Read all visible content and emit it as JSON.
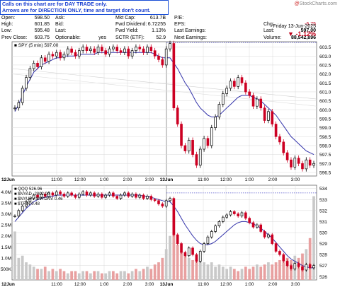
{
  "banner": {
    "line1": "Calls on this chart are for DAY TRADE only.",
    "line2": "Arrows are for DIRECTION ONLY, time and target don't count."
  },
  "credit": {
    "prefix": "@",
    "brand": "StockCharts.com"
  },
  "header": {
    "date": "Friday  13-Jun-2025",
    "change_pct": "-1.12%",
    "col1": [
      {
        "label": "Open:",
        "value": "598.50"
      },
      {
        "label": "High:",
        "value": "601.85"
      },
      {
        "label": "Low:",
        "value": "595.48"
      },
      {
        "label": "Prev Close:",
        "value": "603.75"
      }
    ],
    "col2": [
      {
        "label": "Ask:",
        "value": ""
      },
      {
        "label": "Bid:",
        "value": ""
      },
      {
        "label": "Last:",
        "value": ""
      },
      {
        "label": "Optionable:",
        "value": "yes"
      }
    ],
    "col3": [
      {
        "label": "Mkt Cap:",
        "value": "613.7B"
      },
      {
        "label": "Fwd Dividend:",
        "value": "6.72255"
      },
      {
        "label": "Fwd Yield:",
        "value": "1.13%"
      },
      {
        "label": "SCTR (ETF):",
        "value": "52.9"
      }
    ],
    "col4": [
      {
        "label": "P/E:",
        "value": ""
      },
      {
        "label": "EPS:",
        "value": ""
      },
      {
        "label": "Last Earnings:",
        "value": ""
      },
      {
        "label": "Next Earnings:",
        "value": ""
      }
    ],
    "col5": [
      {
        "label": "Chg:",
        "value": "-6.75"
      },
      {
        "label": "Last:",
        "value": "597.00"
      },
      {
        "label": "Volume:",
        "value": "88,542,896"
      }
    ]
  },
  "chart_data": [
    {
      "type": "line",
      "legend": "SPY (5 min) 597.00",
      "title": "",
      "x_labels": [
        "12Jun",
        "11:00",
        "12:00",
        "1:00",
        "2:00",
        "3:00",
        "13Jun",
        "11:00",
        "12:00",
        "1:00",
        "2:00",
        "3:00"
      ],
      "y_ticks": [
        596.5,
        597.0,
        597.5,
        598.0,
        598.5,
        599.0,
        599.5,
        600.0,
        600.5,
        601.0,
        601.5,
        602.0,
        602.5,
        603.0,
        603.5
      ],
      "ylim": [
        596.3,
        603.8
      ],
      "prev_close": 603.75,
      "price_series": [
        600.1,
        600.4,
        601.2,
        601.8,
        602.3,
        602.6,
        602.4,
        602.9,
        602.7,
        603.1,
        603.0,
        603.2,
        602.9,
        603.1,
        603.4,
        603.2,
        603.0,
        603.3,
        603.5,
        603.3,
        603.4,
        603.2,
        603.5,
        603.3,
        603.1,
        603.4,
        603.5,
        603.3,
        603.2,
        603.4,
        603.0,
        603.3,
        603.5,
        603.4,
        603.2,
        603.5,
        603.3,
        603.0,
        602.8,
        602.5,
        603.4,
        603.7,
        600.1,
        599.2,
        598.0,
        597.7,
        598.3,
        597.5,
        596.9,
        597.8,
        598.4,
        598.0,
        599.0,
        599.6,
        600.3,
        600.9,
        601.2,
        601.6,
        601.3,
        601.8,
        601.5,
        601.0,
        600.8,
        600.2,
        600.6,
        600.1,
        599.4,
        599.9,
        599.2,
        598.5,
        598.2,
        597.6,
        597.2,
        596.8,
        597.3,
        597.0,
        596.7,
        597.2,
        596.9,
        597.0
      ],
      "ma_series": [
        599.9,
        600.3,
        600.8,
        601.3,
        601.7,
        602.1,
        602.3,
        602.5,
        602.6,
        602.7,
        602.8,
        602.9,
        602.9,
        603.0,
        603.0,
        603.0,
        603.0,
        603.1,
        603.1,
        603.1,
        603.1,
        603.1,
        603.2,
        603.2,
        603.2,
        603.2,
        603.2,
        603.2,
        603.2,
        603.2,
        603.2,
        603.2,
        603.2,
        603.2,
        603.2,
        603.2,
        603.2,
        603.1,
        603.0,
        602.9,
        602.9,
        602.9,
        602.6,
        602.3,
        601.9,
        601.5,
        601.2,
        600.8,
        600.4,
        600.1,
        599.9,
        599.7,
        599.6,
        599.6,
        599.7,
        599.9,
        600.1,
        600.3,
        600.5,
        600.7,
        600.8,
        600.8,
        600.8,
        600.7,
        600.6,
        600.5,
        600.3,
        600.1,
        599.9,
        599.7,
        599.4,
        599.1,
        598.8,
        598.5,
        598.3,
        598.1,
        597.9,
        597.7,
        597.6,
        597.5
      ]
    },
    {
      "type": "line",
      "legend": [
        "QQQ 526.96",
        "$NYAD -2002.00",
        "$NYUPV:$NYDNV 0.46",
        "$TRIN 0.48"
      ],
      "title": "",
      "right_ticks": [
        526,
        527,
        528,
        529,
        530,
        531,
        532,
        533,
        534
      ],
      "left_ticks": [
        "500K",
        "1.0M",
        "1.5M",
        "2.0M",
        "2.5M",
        "3.0M",
        "3.5M",
        "4.0M"
      ],
      "ylim": [
        525.7,
        534.3
      ],
      "prev_close": 533.6,
      "price_series": [
        531.5,
        532.0,
        532.4,
        532.8,
        533.1,
        533.4,
        533.2,
        533.5,
        533.3,
        533.6,
        533.4,
        533.7,
        533.5,
        533.3,
        533.6,
        533.4,
        533.2,
        533.5,
        533.7,
        533.4,
        533.6,
        533.3,
        533.5,
        533.2,
        533.4,
        533.6,
        533.3,
        533.1,
        533.4,
        533.6,
        533.3,
        533.5,
        533.2,
        533.4,
        533.1,
        533.3,
        533.0,
        532.9,
        532.6,
        532.4,
        532.9,
        533.1,
        529.8,
        529.0,
        528.2,
        527.9,
        528.6,
        528.0,
        527.4,
        528.3,
        529.0,
        529.6,
        530.1,
        530.6,
        531.0,
        531.4,
        531.6,
        531.9,
        531.7,
        531.5,
        531.8,
        531.3,
        530.9,
        530.5,
        530.7,
        530.1,
        529.6,
        529.8,
        529.0,
        528.3,
        528.0,
        527.4,
        527.0,
        526.7,
        527.2,
        526.9,
        526.6,
        527.1,
        526.8,
        527.0
      ],
      "ma_series": [
        531.0,
        531.4,
        531.8,
        532.2,
        532.5,
        532.8,
        533.0,
        533.1,
        533.2,
        533.3,
        533.3,
        533.4,
        533.4,
        533.4,
        533.4,
        533.4,
        533.4,
        533.4,
        533.4,
        533.4,
        533.4,
        533.4,
        533.4,
        533.4,
        533.4,
        533.4,
        533.4,
        533.4,
        533.4,
        533.4,
        533.4,
        533.4,
        533.4,
        533.4,
        533.3,
        533.3,
        533.2,
        533.1,
        533.0,
        532.9,
        532.8,
        532.8,
        532.4,
        531.9,
        531.3,
        530.7,
        530.2,
        529.7,
        529.3,
        529.0,
        528.9,
        528.9,
        529.0,
        529.2,
        529.5,
        529.8,
        530.1,
        530.4,
        530.7,
        530.9,
        531.0,
        531.0,
        530.9,
        530.8,
        530.6,
        530.4,
        530.1,
        529.8,
        529.5,
        529.1,
        528.7,
        528.3,
        527.9,
        527.6,
        527.4,
        527.2,
        527.0,
        526.9,
        526.8,
        526.8
      ],
      "volume_series": [
        2.2,
        1.0,
        1.1,
        0.8,
        0.7,
        0.6,
        0.5,
        0.5,
        0.6,
        0.4,
        0.5,
        0.4,
        0.5,
        0.4,
        0.3,
        0.4,
        0.4,
        0.3,
        0.4,
        0.4,
        0.3,
        0.4,
        0.4,
        0.3,
        0.3,
        0.4,
        0.4,
        0.3,
        0.4,
        0.4,
        0.3,
        0.4,
        0.5,
        0.4,
        0.5,
        0.6,
        0.5,
        0.7,
        0.8,
        1.0,
        1.4,
        2.0,
        2.9,
        1.6,
        1.3,
        1.1,
        1.0,
        0.9,
        0.9,
        1.0,
        0.8,
        0.7,
        0.8,
        0.6,
        0.7,
        0.6,
        0.5,
        0.6,
        0.5,
        0.4,
        0.5,
        0.6,
        0.5,
        0.6,
        0.7,
        0.6,
        0.7,
        0.8,
        0.7,
        0.8,
        0.9,
        0.8,
        1.0,
        0.9,
        1.1,
        1.0,
        1.2,
        1.4,
        1.9,
        3.8
      ],
      "volume_unit": "M"
    }
  ],
  "colors": {
    "up": "#000000",
    "down": "#cc0022",
    "ma": "#3333aa",
    "volume": "#e8a0a0",
    "grid": "#d9d9d9",
    "ref": "#5555cc"
  }
}
